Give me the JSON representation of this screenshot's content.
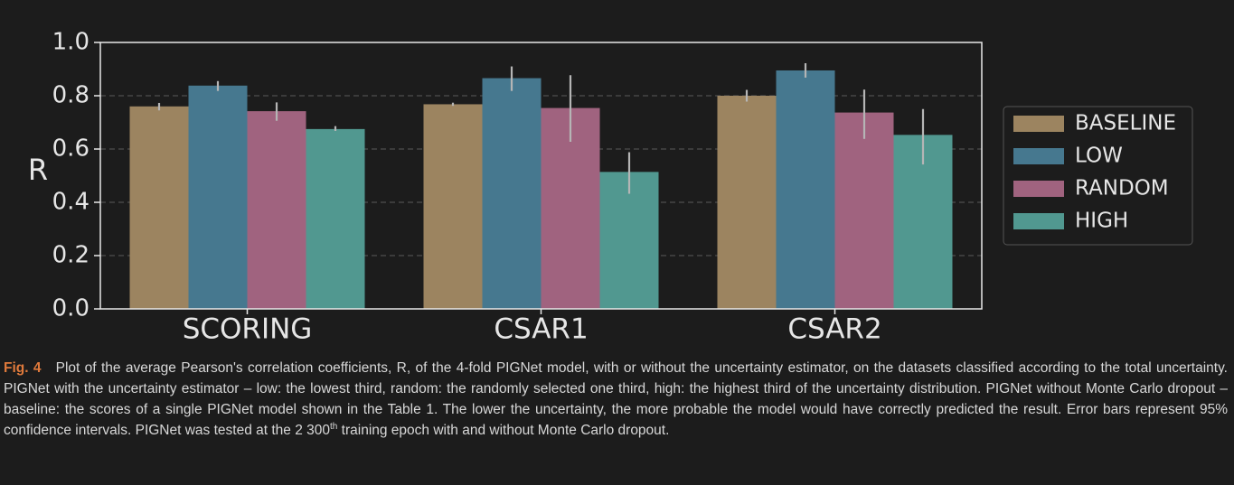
{
  "chart_data": {
    "type": "bar",
    "categories": [
      "SCORING",
      "CSAR1",
      "CSAR2"
    ],
    "series": [
      {
        "name": "BASELINE",
        "color": "#9c8460",
        "values": [
          0.76,
          0.768,
          0.8
        ],
        "err_low": [
          0.745,
          0.762,
          0.778
        ],
        "err_high": [
          0.773,
          0.774,
          0.822
        ]
      },
      {
        "name": "LOW",
        "color": "#46788f",
        "values": [
          0.838,
          0.866,
          0.895
        ],
        "err_low": [
          0.818,
          0.818,
          0.868
        ],
        "err_high": [
          0.855,
          0.91,
          0.922
        ]
      },
      {
        "name": "RANDOM",
        "color": "#a0637f",
        "values": [
          0.742,
          0.754,
          0.737
        ],
        "err_low": [
          0.706,
          0.627,
          0.638
        ],
        "err_high": [
          0.775,
          0.877,
          0.823
        ]
      },
      {
        "name": "HIGH",
        "color": "#519890",
        "values": [
          0.675,
          0.514,
          0.653
        ],
        "err_low": [
          0.668,
          0.432,
          0.542
        ],
        "err_high": [
          0.686,
          0.588,
          0.75
        ]
      }
    ],
    "ylabel": "R",
    "xlabel": "",
    "ylim": [
      0,
      1.0
    ],
    "yticks": [
      "0.0",
      "0.2",
      "0.4",
      "0.6",
      "0.8",
      "1.0"
    ],
    "grid": "horizontal dashed",
    "legend_position": "right",
    "error_bars": "95% confidence intervals"
  },
  "caption": {
    "label": "Fig. 4",
    "text": "Plot of the average Pearson's correlation coefficients, R, of the 4-fold PIGNet model, with or without the uncertainty estimator, on the datasets classified according to the total uncertainty. PIGNet with the uncertainty estimator – low: the lowest third, random: the randomly selected one third, high: the highest third of the uncertainty distribution. PIGNet without Monte Carlo dropout – baseline: the scores of a single PIGNet model shown in the Table 1. The lower the uncertainty, the more probable the model would have correctly predicted the result. Error bars represent 95% confidence intervals. PIGNet was tested at the 2  300",
    "superscript": "th",
    "text_end": " training epoch with and without Monte Carlo dropout."
  }
}
